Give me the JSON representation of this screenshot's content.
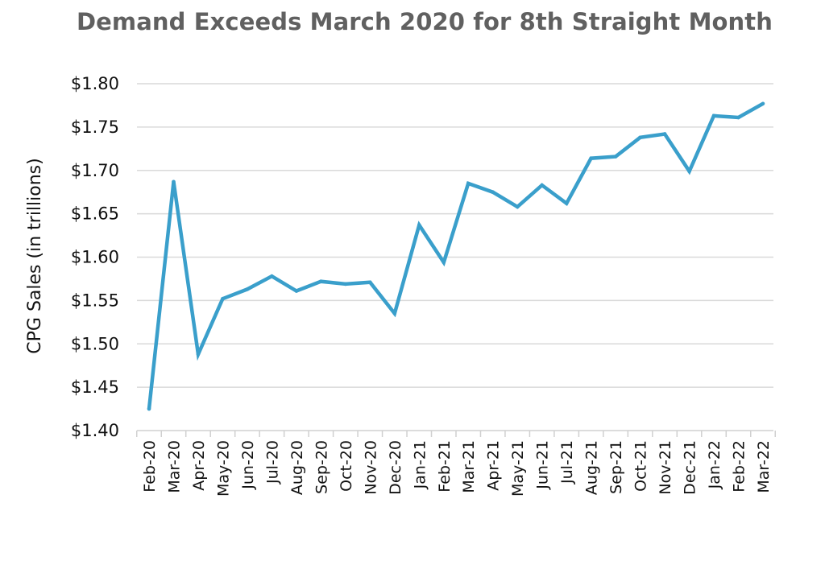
{
  "chart_data": {
    "type": "line",
    "title": "Demand Exceeds March 2020 for 8th Straight Month",
    "xlabel": "",
    "ylabel": "CPG Sales (in trillions)",
    "ylim": [
      1.4,
      1.8
    ],
    "yticks": [
      "$1.40",
      "$1.45",
      "$1.50",
      "$1.55",
      "$1.60",
      "$1.65",
      "$1.70",
      "$1.75",
      "$1.80"
    ],
    "ytick_values": [
      1.4,
      1.45,
      1.5,
      1.55,
      1.6,
      1.65,
      1.7,
      1.75,
      1.8
    ],
    "grid": true,
    "legend": "none",
    "line_color": "#3a9fcb",
    "categories": [
      "Feb-20",
      "Mar-20",
      "Apr-20",
      "May-20",
      "Jun-20",
      "Jul-20",
      "Aug-20",
      "Sep-20",
      "Oct-20",
      "Nov-20",
      "Dec-20",
      "Jan-21",
      "Feb-21",
      "Mar-21",
      "Apr-21",
      "May-21",
      "Jun-21",
      "Jul-21",
      "Aug-21",
      "Sep-21",
      "Oct-21",
      "Nov-21",
      "Dec-21",
      "Jan-22",
      "Feb-22",
      "Mar-22"
    ],
    "series": [
      {
        "values": [
          1.425,
          1.687,
          1.488,
          1.552,
          1.563,
          1.578,
          1.561,
          1.572,
          1.569,
          1.571,
          1.535,
          1.637,
          1.594,
          1.685,
          1.675,
          1.658,
          1.683,
          1.662,
          1.714,
          1.716,
          1.738,
          1.742,
          1.699,
          1.763,
          1.761,
          1.777
        ]
      }
    ]
  }
}
